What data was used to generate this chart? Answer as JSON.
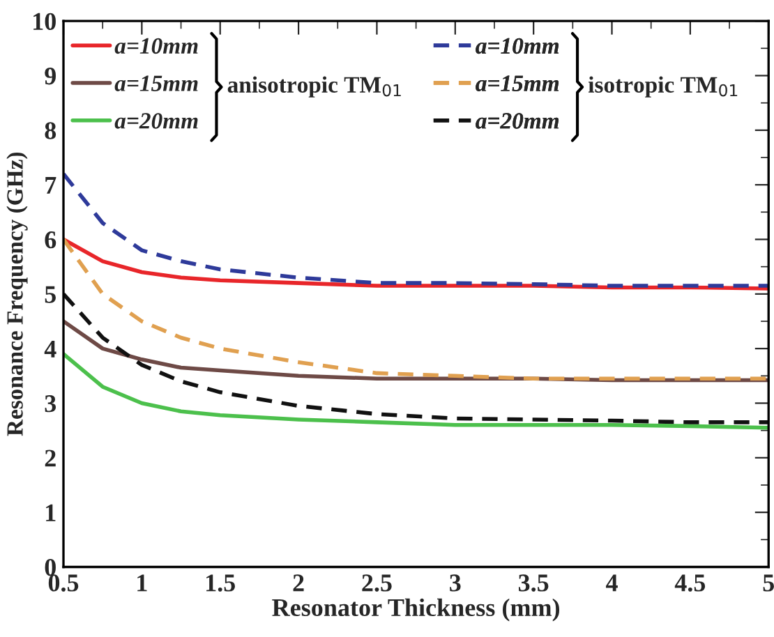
{
  "chart_data": {
    "type": "line",
    "xlabel": "Resonator Thickness (mm)",
    "ylabel": "Resonance Frequency (GHz)",
    "x": [
      0.5,
      0.75,
      1,
      1.25,
      1.5,
      2,
      2.5,
      3,
      3.5,
      4,
      4.5,
      5
    ],
    "series": [
      {
        "name": "a=10mm",
        "color": "#e8262a",
        "line_style": "solid",
        "values": [
          6.0,
          5.6,
          5.4,
          5.3,
          5.25,
          5.2,
          5.15,
          5.15,
          5.15,
          5.12,
          5.12,
          5.1
        ]
      },
      {
        "name": "a=15mm",
        "color": "#6e4a46",
        "line_style": "solid",
        "values": [
          4.5,
          4.0,
          3.8,
          3.65,
          3.6,
          3.5,
          3.45,
          3.45,
          3.45,
          3.42,
          3.42,
          3.42
        ]
      },
      {
        "name": "a=20mm",
        "color": "#4cc04c",
        "line_style": "solid",
        "values": [
          3.9,
          3.3,
          3.0,
          2.85,
          2.78,
          2.7,
          2.65,
          2.6,
          2.6,
          2.6,
          2.58,
          2.55
        ]
      },
      {
        "name": "a=10mm",
        "color": "#2e3a9a",
        "line_style": "dashed",
        "values": [
          7.2,
          6.3,
          5.8,
          5.6,
          5.45,
          5.3,
          5.2,
          5.2,
          5.18,
          5.15,
          5.15,
          5.15
        ]
      },
      {
        "name": "a=15mm",
        "color": "#e0a050",
        "line_style": "dashed",
        "values": [
          6.0,
          5.0,
          4.5,
          4.2,
          4.0,
          3.75,
          3.55,
          3.5,
          3.45,
          3.45,
          3.45,
          3.45
        ]
      },
      {
        "name": "a=20mm",
        "color": "#111111",
        "line_style": "dashed",
        "values": [
          5.0,
          4.2,
          3.7,
          3.4,
          3.2,
          2.95,
          2.8,
          2.72,
          2.7,
          2.68,
          2.65,
          2.65
        ]
      }
    ],
    "annotations": [
      "anisotropic TM$_{01}$",
      "isotropic TM$_{01}$"
    ],
    "xlim": [
      0.5,
      5
    ],
    "xticks": [
      0.5,
      1,
      1.5,
      2,
      2.5,
      3,
      3.5,
      4,
      4.5,
      5
    ],
    "ylim": [
      0,
      10
    ],
    "yticks": [
      0,
      1,
      2,
      3,
      4,
      5,
      6,
      7,
      8,
      9,
      10
    ],
    "grid": false,
    "legend": "top left",
    "marker": "none"
  }
}
